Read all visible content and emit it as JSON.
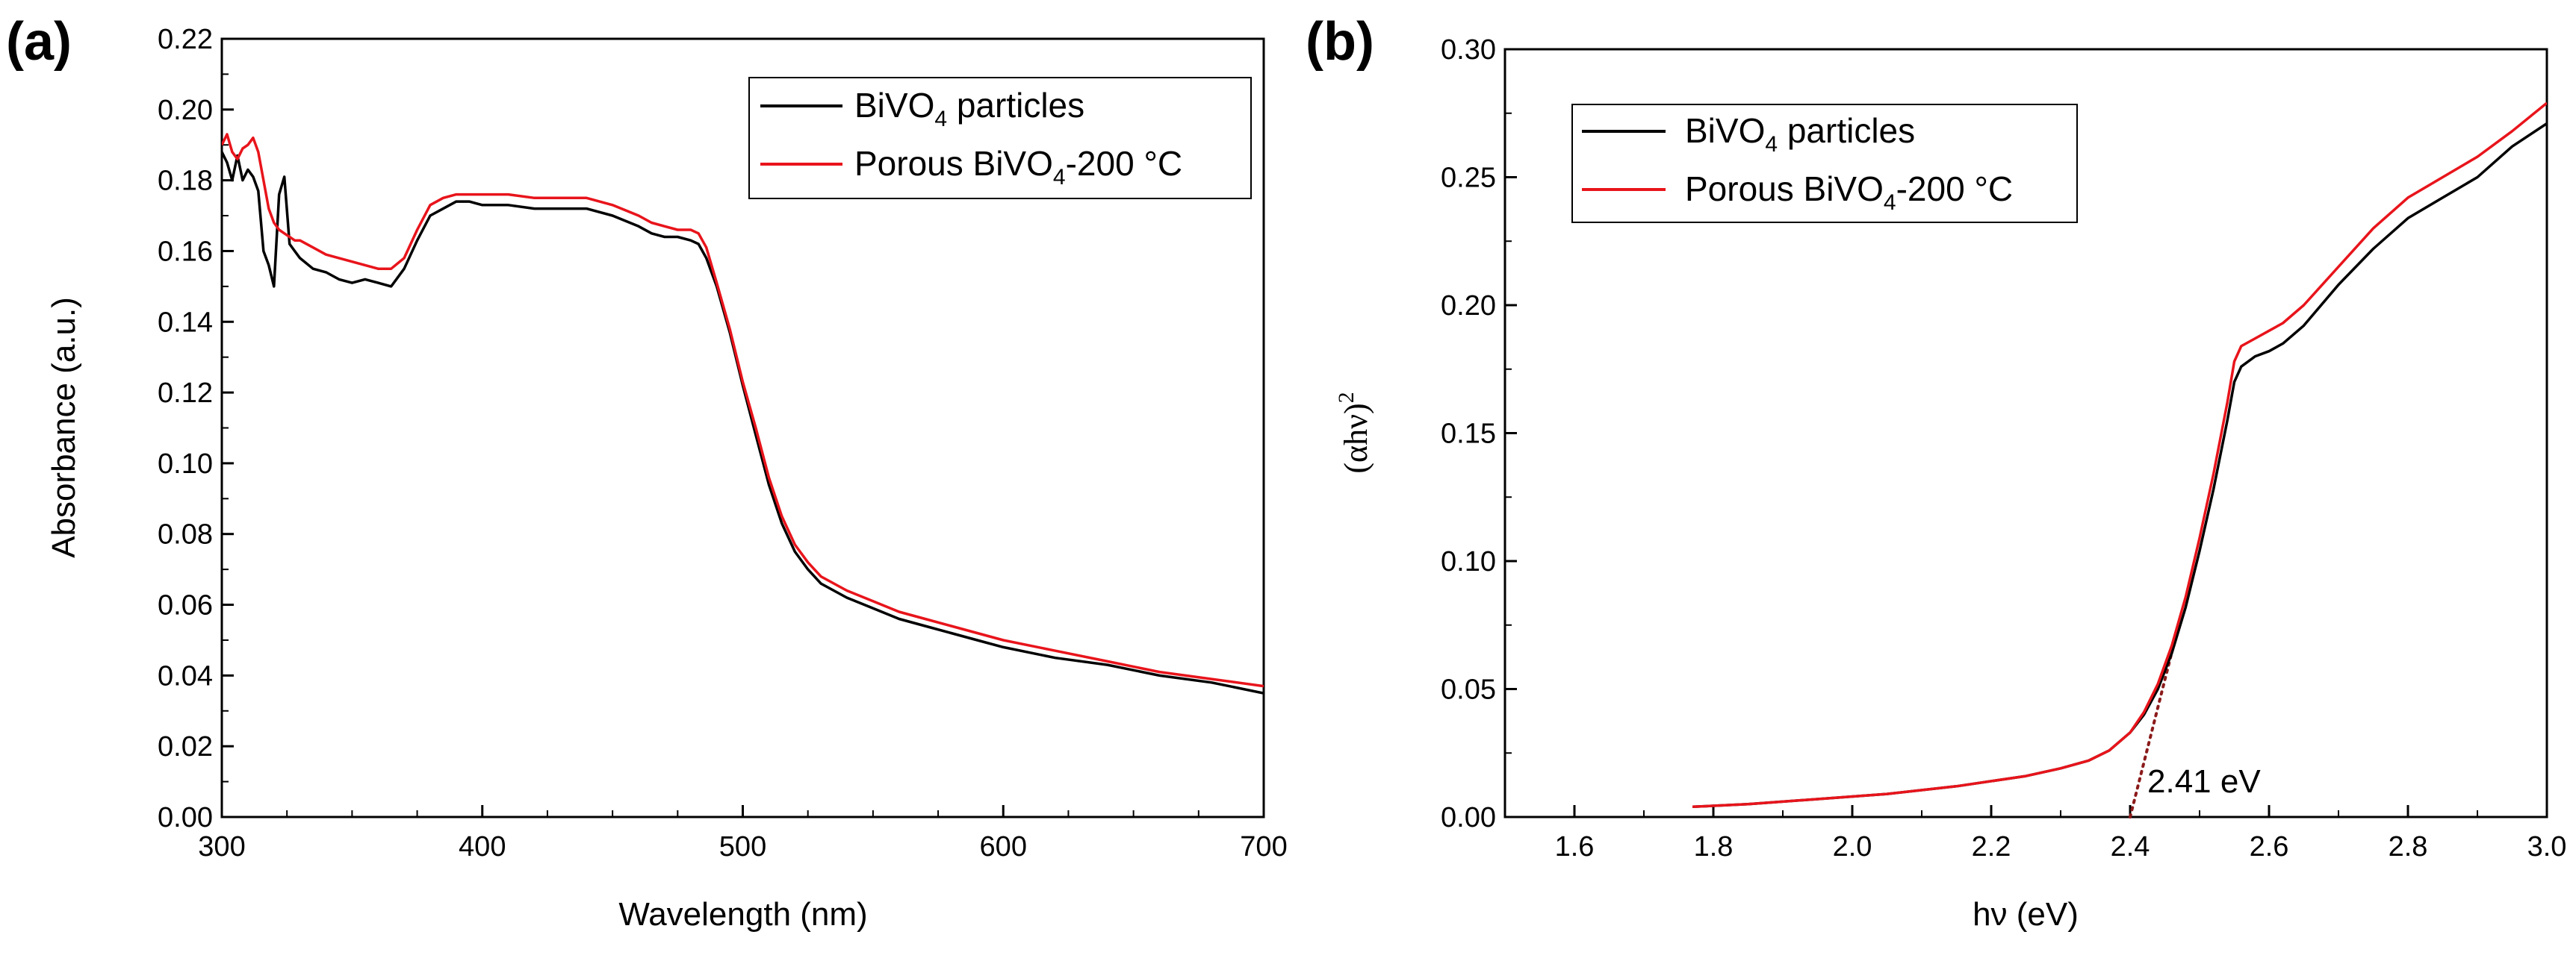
{
  "chart_data": [
    {
      "panel_label": "(a)",
      "type": "line",
      "xlabel": "Wavelength (nm)",
      "ylabel": "Absorbance (a.u.)",
      "xlim": [
        300,
        700
      ],
      "ylim": [
        0,
        0.22
      ],
      "xticks": [
        "300",
        "400",
        "500",
        "600",
        "700"
      ],
      "yticks": [
        "0.00",
        "0.02",
        "0.04",
        "0.06",
        "0.08",
        "0.10",
        "0.12",
        "0.14",
        "0.16",
        "0.18",
        "0.20",
        "0.22"
      ],
      "legend_placement": "top-right",
      "series": [
        {
          "name": "BiVO4 particles",
          "legend_base": "BiVO",
          "legend_sub": "4",
          "legend_rest": " particles",
          "color": "#000000",
          "x": [
            300,
            302,
            304,
            306,
            308,
            310,
            312,
            314,
            316,
            318,
            320,
            322,
            324,
            326,
            328,
            330,
            335,
            340,
            345,
            350,
            355,
            360,
            365,
            370,
            375,
            380,
            385,
            390,
            395,
            400,
            410,
            420,
            430,
            440,
            450,
            460,
            465,
            470,
            475,
            480,
            483,
            486,
            490,
            495,
            500,
            505,
            510,
            515,
            520,
            525,
            530,
            540,
            550,
            560,
            570,
            580,
            590,
            600,
            620,
            640,
            660,
            680,
            700
          ],
          "y": [
            0.188,
            0.185,
            0.18,
            0.187,
            0.18,
            0.183,
            0.181,
            0.177,
            0.16,
            0.156,
            0.15,
            0.176,
            0.181,
            0.162,
            0.16,
            0.158,
            0.155,
            0.154,
            0.152,
            0.151,
            0.152,
            0.151,
            0.15,
            0.155,
            0.163,
            0.17,
            0.172,
            0.174,
            0.174,
            0.173,
            0.173,
            0.172,
            0.172,
            0.172,
            0.17,
            0.167,
            0.165,
            0.164,
            0.164,
            0.163,
            0.162,
            0.158,
            0.15,
            0.137,
            0.122,
            0.108,
            0.094,
            0.083,
            0.075,
            0.07,
            0.066,
            0.062,
            0.059,
            0.056,
            0.054,
            0.052,
            0.05,
            0.048,
            0.045,
            0.043,
            0.04,
            0.038,
            0.035
          ]
        },
        {
          "name": "Porous BiVO4-200 °C",
          "legend_base": "Porous BiVO",
          "legend_sub": "4",
          "legend_rest": "-200 °C",
          "color": "#e8141b",
          "x": [
            300,
            302,
            304,
            306,
            308,
            310,
            312,
            314,
            316,
            318,
            320,
            322,
            324,
            326,
            328,
            330,
            335,
            340,
            345,
            350,
            355,
            360,
            365,
            370,
            375,
            380,
            385,
            390,
            395,
            400,
            410,
            420,
            430,
            440,
            450,
            460,
            465,
            470,
            475,
            480,
            483,
            486,
            490,
            495,
            500,
            505,
            510,
            515,
            520,
            525,
            530,
            540,
            550,
            560,
            570,
            580,
            590,
            600,
            620,
            640,
            660,
            680,
            700
          ],
          "y": [
            0.19,
            0.193,
            0.188,
            0.186,
            0.189,
            0.19,
            0.192,
            0.188,
            0.18,
            0.172,
            0.168,
            0.166,
            0.165,
            0.164,
            0.163,
            0.163,
            0.161,
            0.159,
            0.158,
            0.157,
            0.156,
            0.155,
            0.155,
            0.158,
            0.166,
            0.173,
            0.175,
            0.176,
            0.176,
            0.176,
            0.176,
            0.175,
            0.175,
            0.175,
            0.173,
            0.17,
            0.168,
            0.167,
            0.166,
            0.166,
            0.165,
            0.161,
            0.151,
            0.138,
            0.123,
            0.11,
            0.096,
            0.085,
            0.077,
            0.072,
            0.068,
            0.064,
            0.061,
            0.058,
            0.056,
            0.054,
            0.052,
            0.05,
            0.047,
            0.044,
            0.041,
            0.039,
            0.037
          ]
        }
      ]
    },
    {
      "panel_label": "(b)",
      "type": "line",
      "xlabel": "hν (eV)",
      "ylabel_base": "(αhν)",
      "ylabel_sup": "2",
      "xlim": [
        1.5,
        3.0
      ],
      "ylim": [
        0,
        0.3
      ],
      "xticks": [
        "1.6",
        "1.8",
        "2.0",
        "2.2",
        "2.4",
        "2.6",
        "2.8",
        "3.0"
      ],
      "yticks": [
        "0.00",
        "0.05",
        "0.10",
        "0.15",
        "0.20",
        "0.25",
        "0.30"
      ],
      "legend_placement": "top-left",
      "annotation": "2.41 eV",
      "tangent": {
        "x": [
          2.4,
          2.47
        ],
        "y": [
          0.0,
          0.075
        ]
      },
      "series": [
        {
          "name": "BiVO4 particles",
          "legend_base": "BiVO",
          "legend_sub": "4",
          "legend_rest": " particles",
          "color": "#000000",
          "x": [
            1.77,
            1.85,
            1.95,
            2.05,
            2.15,
            2.25,
            2.3,
            2.34,
            2.37,
            2.4,
            2.42,
            2.44,
            2.46,
            2.48,
            2.5,
            2.52,
            2.54,
            2.55,
            2.56,
            2.58,
            2.6,
            2.62,
            2.65,
            2.7,
            2.75,
            2.8,
            2.85,
            2.9,
            2.95,
            3.0
          ],
          "y": [
            0.004,
            0.005,
            0.007,
            0.009,
            0.012,
            0.016,
            0.019,
            0.022,
            0.026,
            0.033,
            0.04,
            0.05,
            0.064,
            0.082,
            0.104,
            0.128,
            0.155,
            0.17,
            0.176,
            0.18,
            0.182,
            0.185,
            0.192,
            0.208,
            0.222,
            0.234,
            0.242,
            0.25,
            0.262,
            0.271
          ]
        },
        {
          "name": "Porous BiVO4-200 °C",
          "legend_base": "Porous BiVO",
          "legend_sub": "4",
          "legend_rest": "-200 °C",
          "color": "#e8141b",
          "x": [
            1.77,
            1.85,
            1.95,
            2.05,
            2.15,
            2.25,
            2.3,
            2.34,
            2.37,
            2.4,
            2.42,
            2.44,
            2.46,
            2.48,
            2.5,
            2.52,
            2.54,
            2.55,
            2.56,
            2.58,
            2.6,
            2.62,
            2.65,
            2.7,
            2.75,
            2.8,
            2.85,
            2.9,
            2.95,
            3.0
          ],
          "y": [
            0.004,
            0.005,
            0.007,
            0.009,
            0.012,
            0.016,
            0.019,
            0.022,
            0.026,
            0.033,
            0.041,
            0.052,
            0.067,
            0.086,
            0.109,
            0.134,
            0.162,
            0.178,
            0.184,
            0.187,
            0.19,
            0.193,
            0.2,
            0.215,
            0.23,
            0.242,
            0.25,
            0.258,
            0.268,
            0.279
          ]
        }
      ]
    }
  ]
}
